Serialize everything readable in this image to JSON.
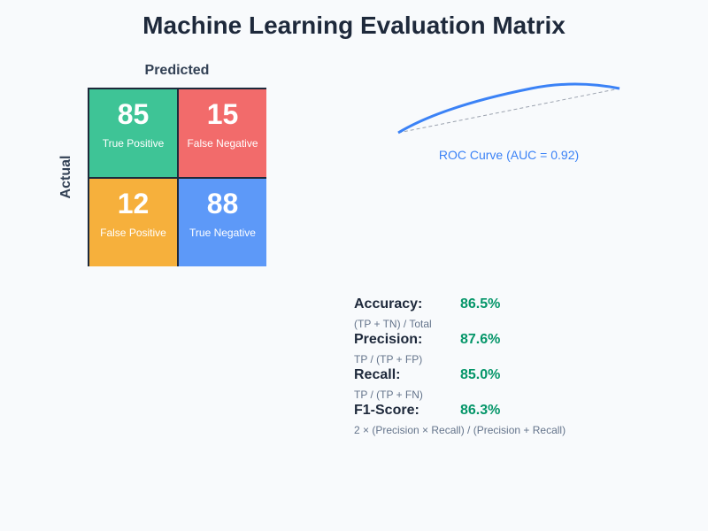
{
  "title": "Machine Learning Evaluation Matrix",
  "axes": {
    "predicted": "Predicted",
    "actual": "Actual"
  },
  "matrix": {
    "cells": [
      {
        "value": "85",
        "label": "True Positive",
        "color": "#3ec496"
      },
      {
        "value": "15",
        "label": "False Negative",
        "color": "#f26b6b"
      },
      {
        "value": "12",
        "label": "False Positive",
        "color": "#f6b03c"
      },
      {
        "value": "88",
        "label": "True Negative",
        "color": "#5d99f8"
      }
    ]
  },
  "roc": {
    "caption": "ROC Curve (AUC = 0.92)",
    "curve_color": "#3b82f6"
  },
  "metrics": [
    {
      "name": "Accuracy:",
      "value": "86.5%",
      "formula": "(TP + TN) / Total"
    },
    {
      "name": "Precision:",
      "value": "87.6%",
      "formula": "TP / (TP + FP)"
    },
    {
      "name": "Recall:",
      "value": "85.0%",
      "formula": "TP / (TP + FN)"
    },
    {
      "name": "F1-Score:",
      "value": "86.3%",
      "formula": "2 × (Precision × Recall) / (Precision + Recall)"
    }
  ]
}
